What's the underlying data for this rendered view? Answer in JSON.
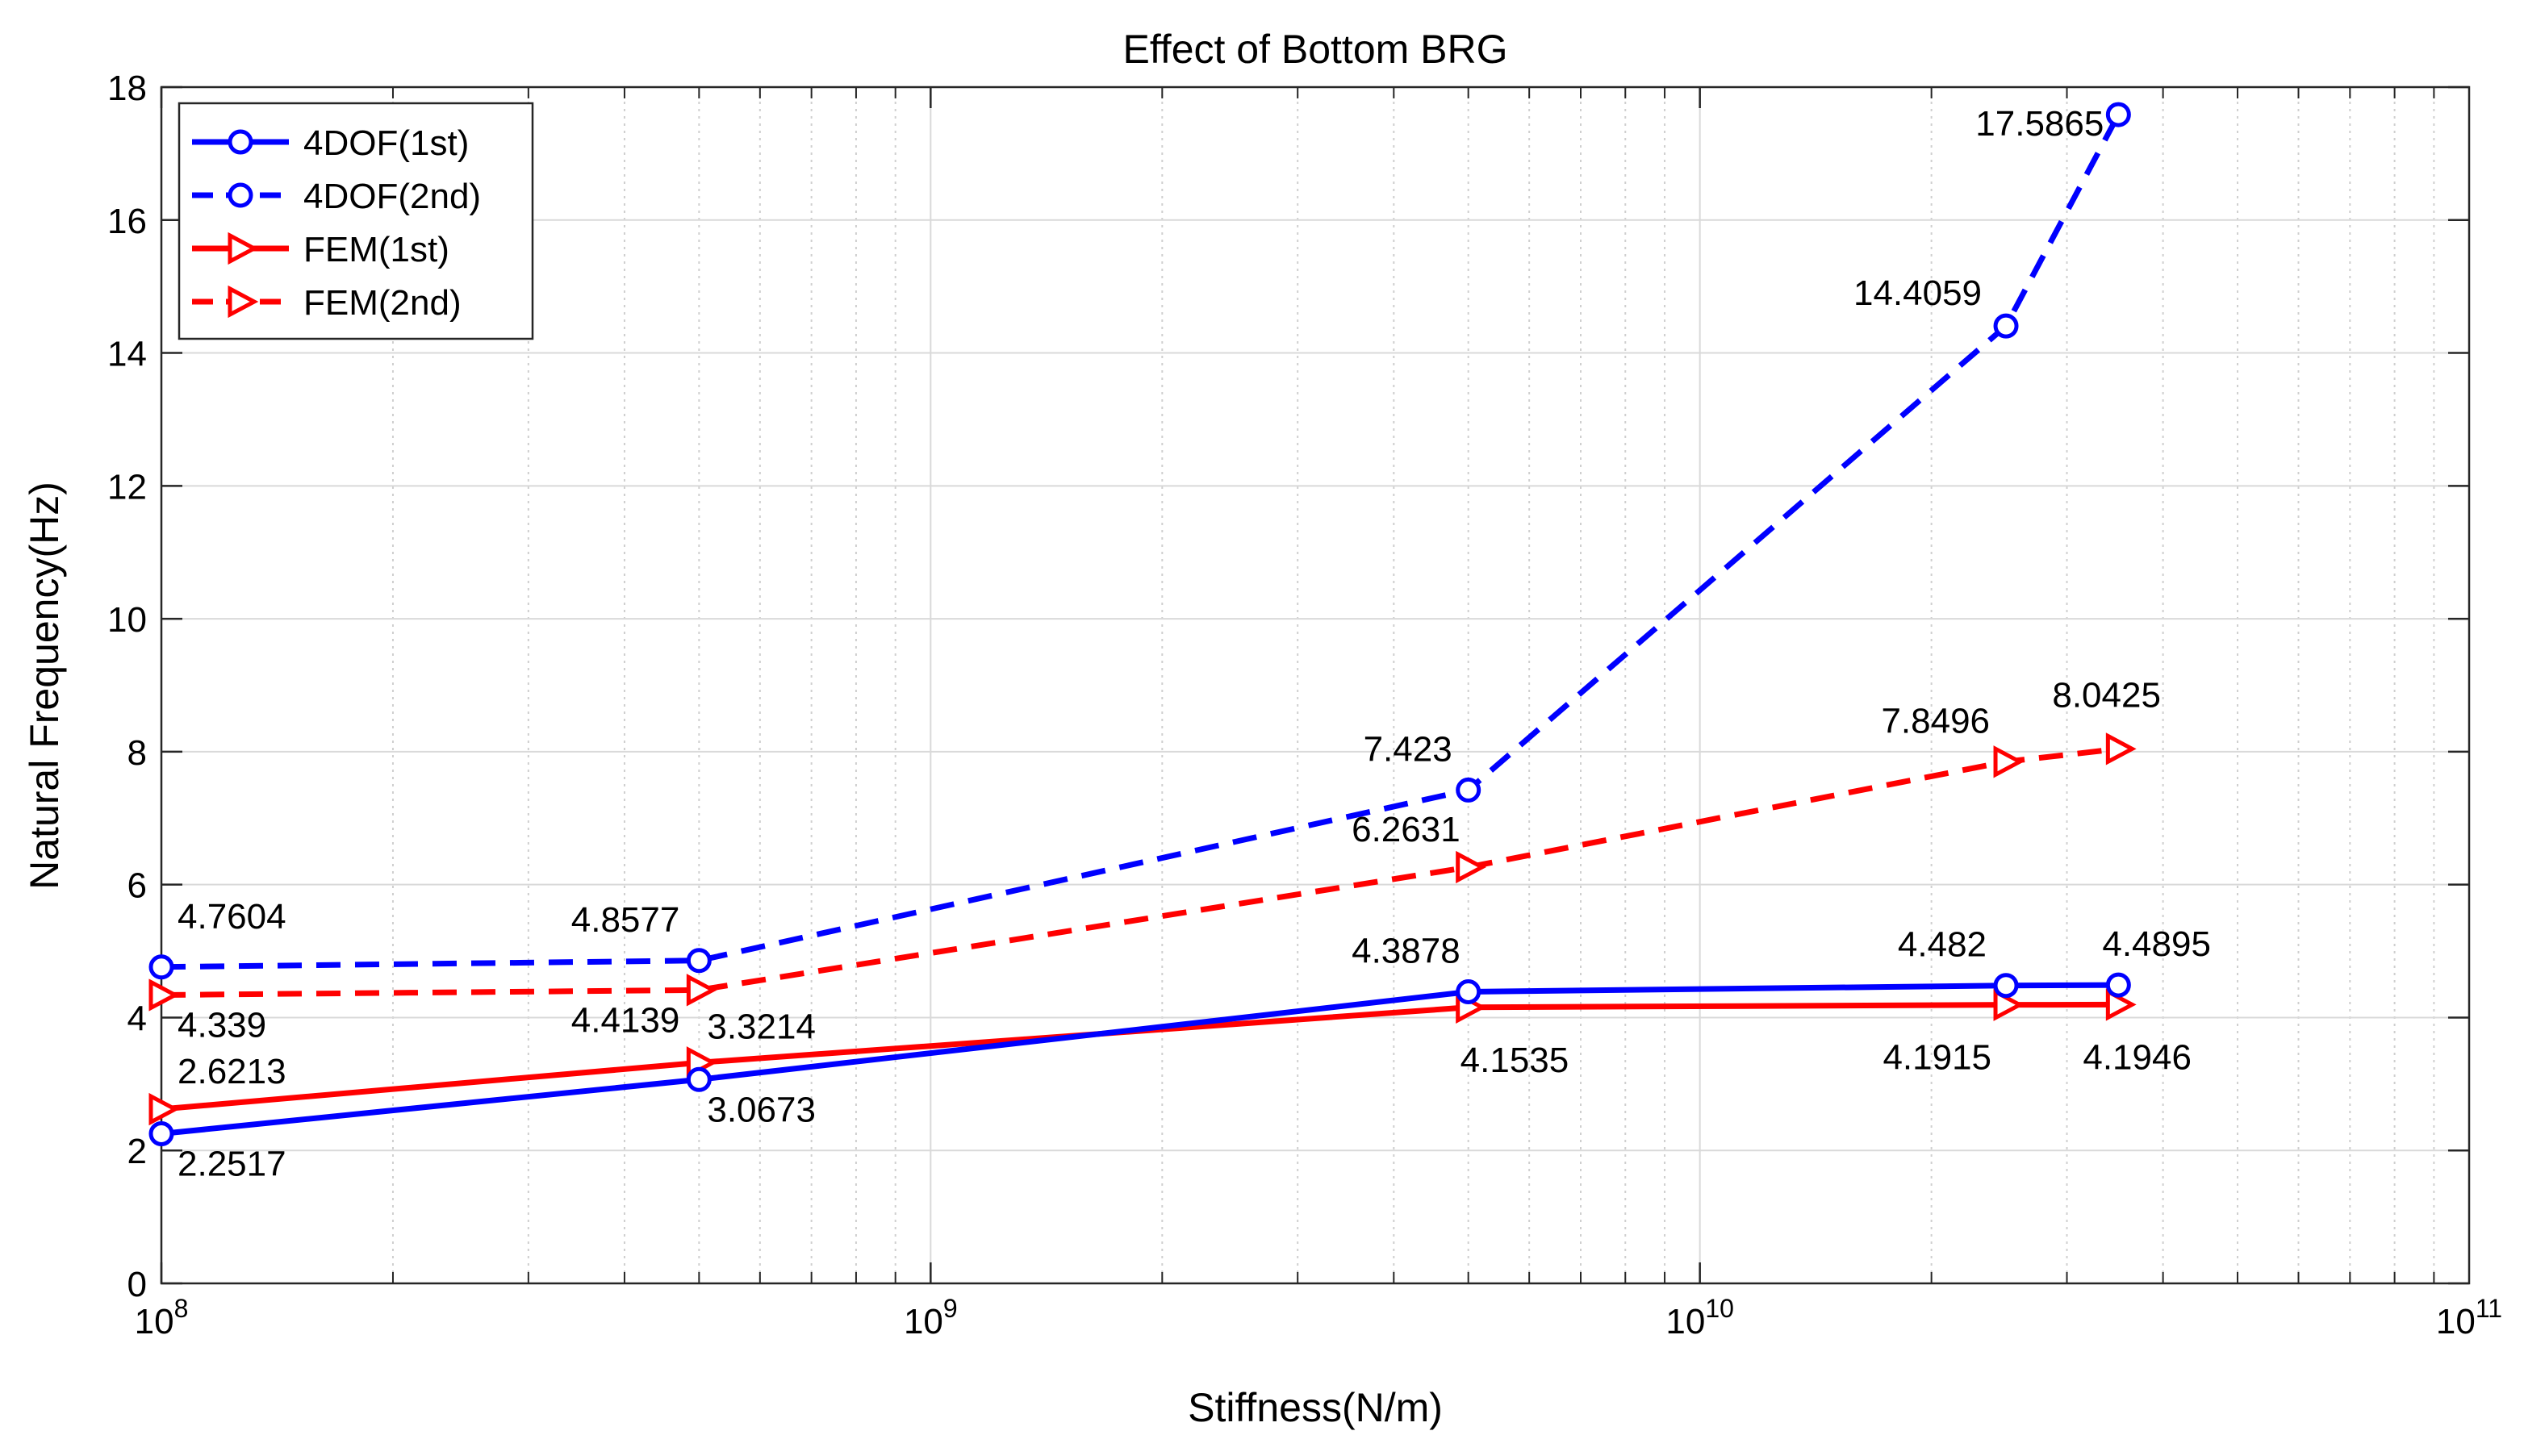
{
  "chart_data": {
    "type": "line",
    "title": "Effect of Bottom BRG",
    "xlabel": "Stiffness(N/m)",
    "ylabel": "Natural Frequency(Hz)",
    "xscale": "log",
    "xlim": [
      100000000,
      100000000000
    ],
    "ylim": [
      0,
      18
    ],
    "yticks": [
      0,
      2,
      4,
      6,
      8,
      10,
      12,
      14,
      16,
      18
    ],
    "xtick_labels": [
      {
        "base": "10",
        "exp": "8"
      },
      {
        "base": "10",
        "exp": "9"
      },
      {
        "base": "10",
        "exp": "10"
      },
      {
        "base": "10",
        "exp": "11"
      }
    ],
    "grid": true,
    "legend_position": "top-left",
    "series": [
      {
        "name": "4DOF(1st)",
        "color": "#0000ff",
        "line": "solid",
        "marker": "circle",
        "x": [
          100000000,
          500000000,
          5000000000,
          25000000000,
          35000000000
        ],
        "y": [
          2.2517,
          3.0673,
          4.3878,
          4.482,
          4.4895
        ],
        "labels": [
          "2.2517",
          "3.0673",
          "4.3878",
          "4.482",
          "4.4895"
        ]
      },
      {
        "name": "4DOF(2nd)",
        "color": "#0000ff",
        "line": "dashed",
        "marker": "circle",
        "x": [
          100000000,
          500000000,
          5000000000,
          25000000000,
          35000000000
        ],
        "y": [
          4.7604,
          4.8577,
          7.423,
          14.4059,
          17.5865
        ],
        "labels": [
          "4.7604",
          "4.8577",
          "7.423",
          "14.4059",
          "17.5865"
        ]
      },
      {
        "name": "FEM(1st)",
        "color": "#ff0000",
        "line": "solid",
        "marker": "triangle-right",
        "x": [
          100000000,
          500000000,
          5000000000,
          25000000000,
          35000000000
        ],
        "y": [
          2.6213,
          3.3214,
          4.1535,
          4.1915,
          4.1946
        ],
        "labels": [
          "2.6213",
          "3.3214",
          "4.1535",
          "4.1915",
          "4.1946"
        ]
      },
      {
        "name": "FEM(2nd)",
        "color": "#ff0000",
        "line": "dashed",
        "marker": "triangle-right",
        "x": [
          100000000,
          500000000,
          5000000000,
          25000000000,
          35000000000
        ],
        "y": [
          4.339,
          4.4139,
          6.2631,
          7.8496,
          8.0425
        ],
        "labels": [
          "4.339",
          "4.4139",
          "6.2631",
          "7.8496",
          "8.0425"
        ]
      }
    ]
  }
}
